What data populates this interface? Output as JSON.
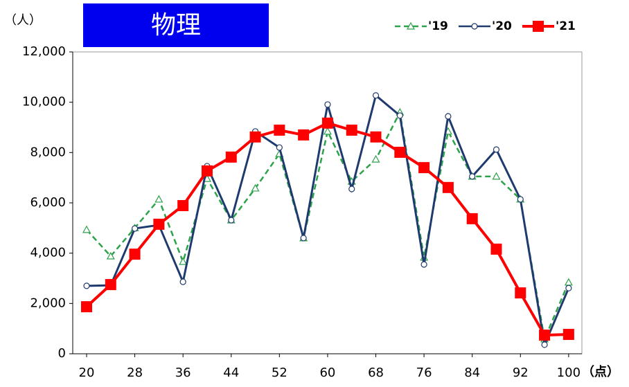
{
  "chart_data": {
    "type": "line",
    "title": "物理",
    "y_unit_label": "（人）",
    "x_unit_label": "（点）",
    "x": [
      20,
      24,
      28,
      32,
      36,
      40,
      44,
      48,
      52,
      56,
      60,
      64,
      68,
      72,
      76,
      80,
      84,
      88,
      92,
      96,
      100
    ],
    "xlim": [
      17.7,
      102.2
    ],
    "xticks": [
      20,
      28,
      36,
      44,
      52,
      60,
      68,
      76,
      84,
      92,
      100
    ],
    "ylim": [
      0,
      12000
    ],
    "yticks": [
      0,
      {
        "value": 2000,
        "label": "2,000"
      },
      {
        "value": 4000,
        "label": "4,000"
      },
      {
        "value": 6000,
        "label": "6,000"
      },
      {
        "value": 8000,
        "label": "8,000"
      },
      {
        "value": 10000,
        "label": "10,000"
      },
      {
        "value": 12000,
        "label": "12,000"
      }
    ],
    "grid": false,
    "legend": "top-right",
    "series": [
      {
        "name": "'19",
        "color": "#2ca24a",
        "marker": "triangle",
        "dashed": true,
        "values": [
          4930,
          3880,
          5000,
          6140,
          3660,
          6960,
          5310,
          6580,
          7950,
          4600,
          8840,
          6850,
          7730,
          9600,
          3830,
          8840,
          7050,
          7050,
          6140,
          580,
          2840
        ]
      },
      {
        "name": "'20",
        "color": "#1f3a6e",
        "marker": "circle",
        "dashed": false,
        "values": [
          2700,
          2720,
          4980,
          5120,
          2860,
          7460,
          5310,
          8840,
          8200,
          4600,
          9910,
          6550,
          10270,
          9470,
          3550,
          9440,
          7050,
          8120,
          6140,
          360,
          2610
        ]
      },
      {
        "name": "'21",
        "color": "#ff0000",
        "marker": "square",
        "dashed": false,
        "values": [
          1870,
          2750,
          3960,
          5150,
          5890,
          7270,
          7820,
          8620,
          8890,
          8700,
          9170,
          8890,
          8620,
          8010,
          7400,
          6610,
          5370,
          4160,
          2420,
          740,
          770
        ]
      }
    ]
  }
}
